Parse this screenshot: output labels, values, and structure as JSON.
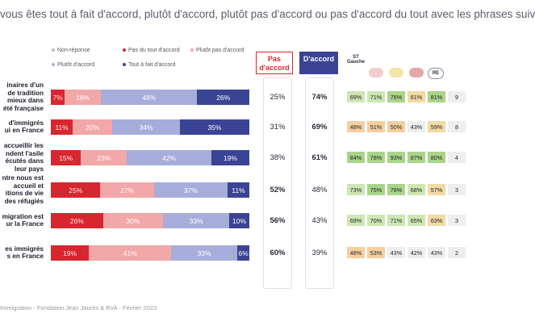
{
  "title": "vous êtes tout à fait d'accord, plutôt d'accord, plutôt pas d'accord ou pas d'accord du tout avec les phrases suiv",
  "legend": [
    {
      "label": "Non-réponse",
      "color": "#bbbbbb"
    },
    {
      "label": "Pas du tout d'accord",
      "color": "#d7262f"
    },
    {
      "label": "Plutôt pas d'accord",
      "color": "#f2a7a8"
    },
    {
      "label": "Plutôt d'accord",
      "color": "#a7addb"
    },
    {
      "label": "Tout à fait d'accord",
      "color": "#3a4394"
    }
  ],
  "col_pas_accord": "Pas\nd'accord",
  "col_accord": "D'accord",
  "party_headers": [
    "ST\nGauche",
    "",
    "",
    "",
    "",
    "RE",
    ""
  ],
  "footer": "Immigration - Fondation Jean Jaurès & BVA - Février 2023",
  "chart_data": {
    "type": "bar",
    "stacked": true,
    "orientation": "horizontal",
    "rows": [
      {
        "label_lines": [
          "inaires d'un",
          "de tradition",
          "mieux dans",
          "été française"
        ],
        "non_reponse": 1,
        "values": [
          7,
          18,
          48,
          26
        ],
        "labels": [
          "7%",
          "18%",
          "48%",
          "26%"
        ],
        "pas_accord": "25%",
        "accord": "74%",
        "pas_bold": false,
        "acc_bold": true,
        "parties": [
          "69%",
          "71%",
          "76%",
          "61%",
          "81%",
          "9"
        ]
      },
      {
        "label_lines": [
          "d'immigrés",
          "ui en France"
        ],
        "non_reponse": 1,
        "values": [
          11,
          20,
          34,
          35
        ],
        "labels": [
          "11%",
          "20%",
          "34%",
          "35%"
        ],
        "pas_accord": "31%",
        "accord": "69%",
        "pas_bold": false,
        "acc_bold": true,
        "parties": [
          "48%",
          "51%",
          "50%",
          "43%",
          "59%",
          "8"
        ]
      },
      {
        "label_lines": [
          "accueillir les",
          "ndent l'asile",
          "écutés dans",
          "leur pays"
        ],
        "non_reponse": 1,
        "values": [
          15,
          23,
          42,
          19
        ],
        "labels": [
          "15%",
          "23%",
          "42%",
          "19%"
        ],
        "pas_accord": "38%",
        "accord": "61%",
        "pas_bold": false,
        "acc_bold": true,
        "parties": [
          "84%",
          "78%",
          "93%",
          "87%",
          "80%",
          "4"
        ]
      },
      {
        "label_lines": [
          "ntre nous est",
          "accueil et",
          "itions de vie",
          "des réfugiés"
        ],
        "non_reponse": 0,
        "values": [
          25,
          27,
          37,
          11
        ],
        "labels": [
          "25%",
          "27%",
          "37%",
          "11%"
        ],
        "pas_accord": "52%",
        "accord": "48%",
        "pas_bold": true,
        "acc_bold": false,
        "parties": [
          "73%",
          "75%",
          "78%",
          "68%",
          "57%",
          "3"
        ]
      },
      {
        "label_lines": [
          "migration est",
          "ur la France"
        ],
        "non_reponse": 1,
        "values": [
          26,
          30,
          33,
          10
        ],
        "labels": [
          "26%",
          "30%",
          "33%",
          "10%"
        ],
        "pas_accord": "56%",
        "accord": "43%",
        "pas_bold": true,
        "acc_bold": false,
        "parties": [
          "69%",
          "70%",
          "71%",
          "65%",
          "63%",
          "3"
        ]
      },
      {
        "label_lines": [
          "es immigrés",
          "s en France"
        ],
        "non_reponse": 1,
        "values": [
          19,
          41,
          33,
          6
        ],
        "labels": [
          "19%",
          "41%",
          "33%",
          "6%"
        ],
        "pas_accord": "60%",
        "accord": "39%",
        "pas_bold": true,
        "acc_bold": false,
        "parties": [
          "48%",
          "53%",
          "43%",
          "42%",
          "43%",
          "2"
        ]
      }
    ]
  }
}
